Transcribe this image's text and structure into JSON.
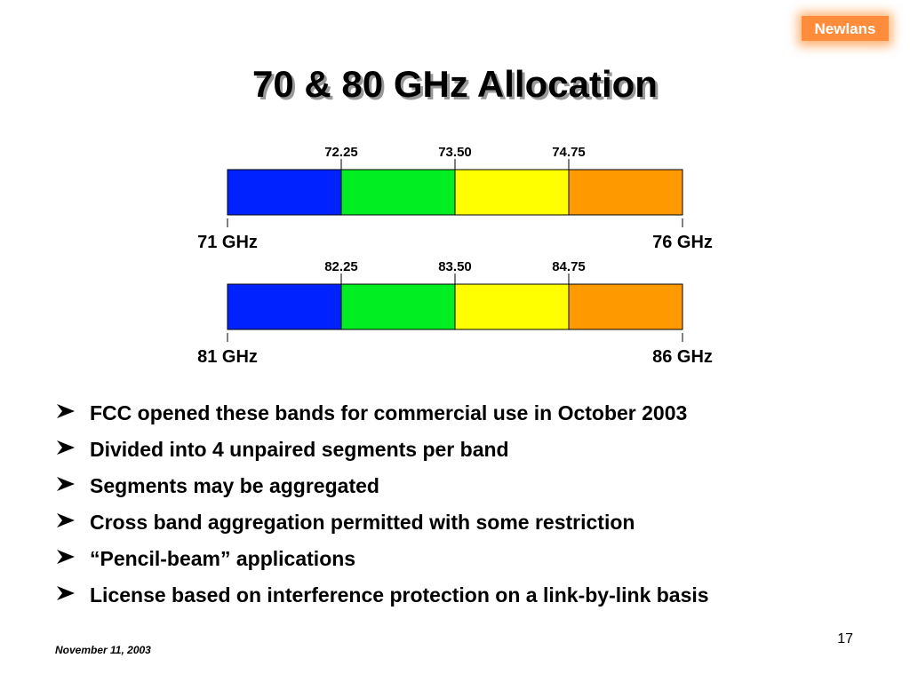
{
  "logo": "Newlans",
  "title": "70 & 80 GHz Allocation",
  "bands": [
    {
      "markers": [
        "72.25",
        "73.50",
        "74.75"
      ],
      "start": "71 GHz",
      "end": "76 GHz"
    },
    {
      "markers": [
        "82.25",
        "83.50",
        "84.75"
      ],
      "start": "81 GHz",
      "end": "86 GHz"
    }
  ],
  "bullets": [
    "FCC opened these bands  for commercial use in October 2003",
    "Divided into 4 unpaired segments per band",
    "Segments may be aggregated",
    "Cross band aggregation permitted with some restriction",
    "“Pencil-beam” applications",
    "License based on interference protection on a link-by-link basis"
  ],
  "footer": {
    "date": "November 11, 2003",
    "page": "17"
  }
}
